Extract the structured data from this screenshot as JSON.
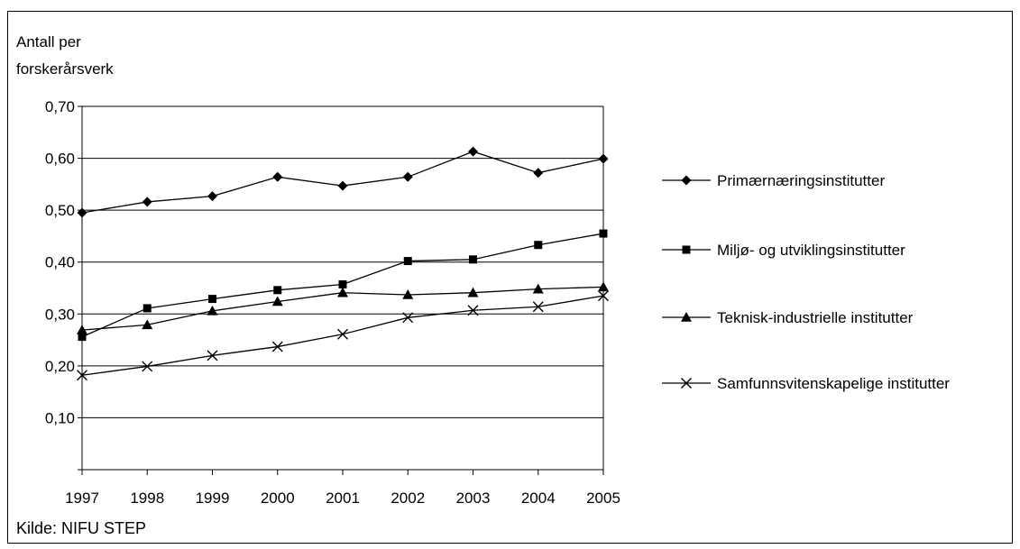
{
  "header_fragment": "",
  "source": "Kilde: NIFU STEP",
  "chart_data": {
    "type": "line",
    "ylabel_line1": "Antall per",
    "ylabel_line2": "forskerårsverk",
    "ylim": [
      0.0,
      0.7
    ],
    "y_ticks": [
      "0,70",
      "0,60",
      "0,50",
      "0,40",
      "0,30",
      "0,20",
      "0,10"
    ],
    "y_tick_values": [
      0.7,
      0.6,
      0.5,
      0.4,
      0.3,
      0.2,
      0.1
    ],
    "grid": true,
    "legend_position": "right",
    "x": [
      "1997",
      "1998",
      "1999",
      "2000",
      "2001",
      "2002",
      "2003",
      "2004",
      "2005"
    ],
    "series": [
      {
        "name": "Primærnæringsinstitutter",
        "marker": "diamond",
        "values": [
          0.495,
          0.516,
          0.527,
          0.564,
          0.547,
          0.564,
          0.613,
          0.572,
          0.599
        ]
      },
      {
        "name": "Miljø- og utviklingsinstitutter",
        "marker": "square",
        "values": [
          0.256,
          0.311,
          0.329,
          0.346,
          0.357,
          0.402,
          0.405,
          0.433,
          0.455
        ]
      },
      {
        "name": "Teknisk-industrielle institutter",
        "marker": "triangle",
        "values": [
          0.269,
          0.279,
          0.306,
          0.324,
          0.341,
          0.337,
          0.341,
          0.348,
          0.352
        ]
      },
      {
        "name": "Samfunnsvitenskapelige institutter",
        "marker": "x",
        "values": [
          0.182,
          0.199,
          0.22,
          0.237,
          0.261,
          0.293,
          0.307,
          0.314,
          0.335
        ]
      }
    ]
  }
}
